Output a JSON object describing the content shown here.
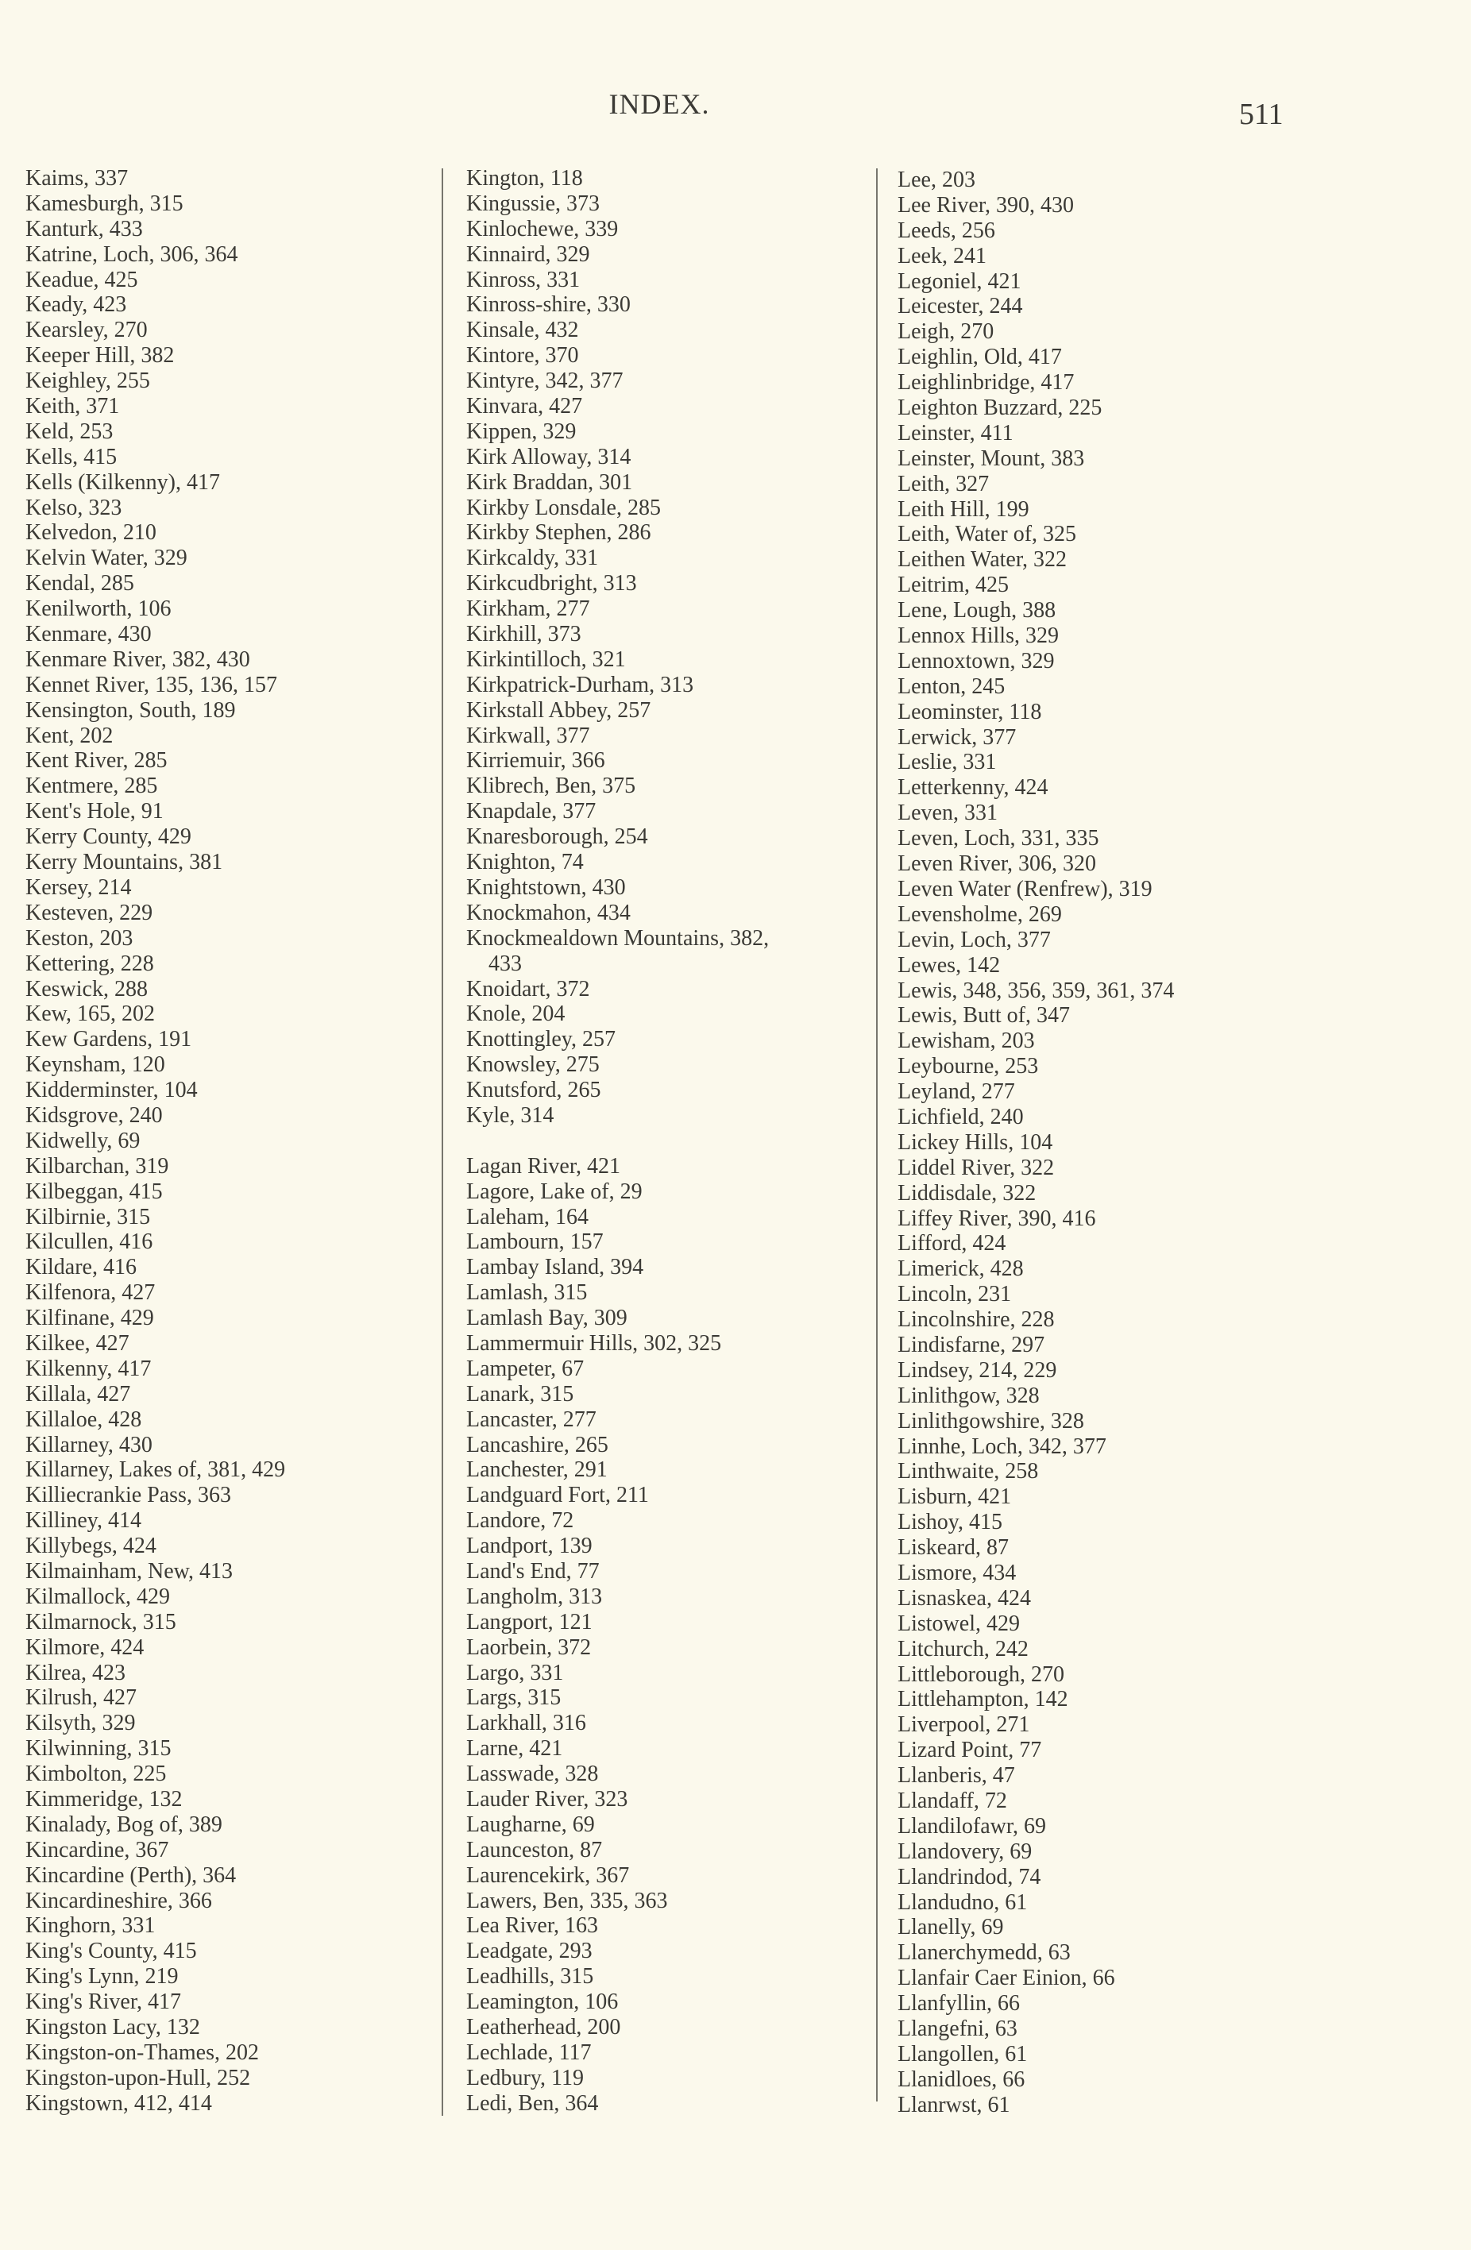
{
  "header": {
    "title": "INDEX.",
    "page_number": "511"
  },
  "columns": [
    [
      "Kaims, 337",
      "Kamesburgh, 315",
      "Kanturk, 433",
      "Katrine, Loch, 306, 364",
      "Keadue, 425",
      "Keady, 423",
      "Kearsley, 270",
      "Keeper Hill, 382",
      "Keighley, 255",
      "Keith, 371",
      "Keld, 253",
      "Kells, 415",
      "Kells (Kilkenny), 417",
      "Kelso, 323",
      "Kelvedon, 210",
      "Kelvin Water, 329",
      "Kendal, 285",
      "Kenilworth, 106",
      "Kenmare, 430",
      "Kenmare River, 382, 430",
      "Kennet River, 135, 136, 157",
      "Kensington, South, 189",
      "Kent, 202",
      "Kent River, 285",
      "Kentmere, 285",
      "Kent's Hole, 91",
      "Kerry County, 429",
      "Kerry Mountains, 381",
      "Kersey, 214",
      "Kesteven, 229",
      "Keston, 203",
      "Kettering, 228",
      "Keswick, 288",
      "Kew, 165, 202",
      "Kew Gardens, 191",
      "Keynsham, 120",
      "Kidderminster, 104",
      "Kidsgrove, 240",
      "Kidwelly, 69",
      "Kilbarchan, 319",
      "Kilbeggan, 415",
      "Kilbirnie, 315",
      "Kilcullen, 416",
      "Kildare, 416",
      "Kilfenora, 427",
      "Kilfinane, 429",
      "Kilkee, 427",
      "Kilkenny, 417",
      "Killala, 427",
      "Killaloe, 428",
      "Killarney, 430",
      "Killarney, Lakes of, 381, 429",
      "Killiecrankie Pass, 363",
      "Killiney, 414",
      "Killybegs, 424",
      "Kilmainham, New, 413",
      "Kilmallock, 429",
      "Kilmarnock, 315",
      "Kilmore, 424",
      "Kilrea, 423",
      "Kilrush, 427",
      "Kilsyth, 329",
      "Kilwinning, 315",
      "Kimbolton, 225",
      "Kimmeridge, 132",
      "Kinalady, Bog of, 389",
      "Kincardine, 367",
      "Kincardine (Perth), 364",
      "Kincardineshire, 366",
      "Kinghorn, 331",
      "King's County, 415",
      "King's Lynn, 219",
      "King's River, 417",
      "Kingston Lacy, 132",
      "Kingston-on-Thames, 202",
      "Kingston-upon-Hull, 252",
      "Kingstown, 412, 414"
    ],
    [
      "Kington, 118",
      "Kingussie, 373",
      "Kinlochewe, 339",
      "Kinnaird, 329",
      "Kinross, 331",
      "Kinross-shire, 330",
      "Kinsale, 432",
      "Kintore, 370",
      "Kintyre, 342, 377",
      "Kinvara, 427",
      "Kippen, 329",
      "Kirk Alloway, 314",
      "Kirk Braddan, 301",
      "Kirkby Lonsdale, 285",
      "Kirkby Stephen, 286",
      "Kirkcaldy, 331",
      "Kirkcudbright, 313",
      "Kirkham, 277",
      "Kirkhill, 373",
      "Kirkintilloch, 321",
      "Kirkpatrick-Durham, 313",
      "Kirkstall Abbey, 257",
      "Kirkwall, 377",
      "Kirriemuir, 366",
      "Klibrech, Ben, 375",
      "Knapdale, 377",
      "Knaresborough, 254",
      "Knighton, 74",
      "Knightstown, 430",
      "Knockmahon, 434",
      "Knockmealdown Mountains, 382,",
      "  433",
      "Knoidart, 372",
      "Knole, 204",
      "Knottingley, 257",
      "Knowsley, 275",
      "Knutsford, 265",
      "Kyle, 314",
      "",
      "Lagan River, 421",
      "Lagore, Lake of, 29",
      "Laleham, 164",
      "Lambourn, 157",
      "Lambay Island, 394",
      "Lamlash, 315",
      "Lamlash Bay, 309",
      "Lammermuir Hills, 302, 325",
      "Lampeter, 67",
      "Lanark, 315",
      "Lancaster, 277",
      "Lancashire, 265",
      "Lanchester, 291",
      "Landguard Fort, 211",
      "Landore, 72",
      "Landport, 139",
      "Land's End, 77",
      "Langholm, 313",
      "Langport, 121",
      "Laorbein, 372",
      "Largo, 331",
      "Largs, 315",
      "Larkhall, 316",
      "Larne, 421",
      "Lasswade, 328",
      "Lauder River, 323",
      "Laugharne, 69",
      "Launceston, 87",
      "Laurencekirk, 367",
      "Lawers, Ben, 335, 363",
      "Lea River, 163",
      "Leadgate, 293",
      "Leadhills, 315",
      "Leamington, 106",
      "Leatherhead, 200",
      "Lechlade, 117",
      "Ledbury, 119",
      "Ledi, Ben, 364"
    ],
    [
      "Lee, 203",
      "Lee River, 390, 430",
      "Leeds, 256",
      "Leek, 241",
      "Legoniel, 421",
      "Leicester, 244",
      "Leigh, 270",
      "Leighlin, Old, 417",
      "Leighlinbridge, 417",
      "Leighton Buzzard, 225",
      "Leinster, 411",
      "Leinster, Mount, 383",
      "Leith, 327",
      "Leith Hill, 199",
      "Leith, Water of, 325",
      "Leithen Water, 322",
      "Leitrim, 425",
      "Lene, Lough, 388",
      "Lennox Hills, 329",
      "Lennoxtown, 329",
      "Lenton, 245",
      "Leominster, 118",
      "Lerwick, 377",
      "Leslie, 331",
      "Letterkenny, 424",
      "Leven, 331",
      "Leven, Loch, 331, 335",
      "Leven River, 306, 320",
      "Leven Water (Renfrew), 319",
      "Levensholme, 269",
      "Levin, Loch, 377",
      "Lewes, 142",
      "Lewis, 348, 356, 359, 361, 374",
      "Lewis, Butt of, 347",
      "Lewisham, 203",
      "Leybourne, 253",
      "Leyland, 277",
      "Lichfield, 240",
      "Lickey Hills, 104",
      "Liddel River, 322",
      "Liddisdale, 322",
      "Liffey River, 390, 416",
      "Lifford, 424",
      "Limerick, 428",
      "Lincoln, 231",
      "Lincolnshire, 228",
      "Lindisfarne, 297",
      "Lindsey, 214, 229",
      "Linlithgow, 328",
      "Linlithgowshire, 328",
      "Linnhe, Loch, 342, 377",
      "Linthwaite, 258",
      "Lisburn, 421",
      "Lishoy, 415",
      "Liskeard, 87",
      "Lismore, 434",
      "Lisnaskea, 424",
      "Listowel, 429",
      "Litchurch, 242",
      "Littleborough, 270",
      "Littlehampton, 142",
      "Liverpool, 271",
      "Lizard Point, 77",
      "Llanberis, 47",
      "Llandaff, 72",
      "Llandilofawr, 69",
      "Llandovery, 69",
      "Llandrindod, 74",
      "Llandudno, 61",
      "Llanelly, 69",
      "Llanerchymedd, 63",
      "Llanfair Caer Einion, 66",
      "Llanfyllin, 66",
      "Llangefni, 63",
      "Llangollen, 61",
      "Llanidloes, 66",
      "Llanrwst, 61"
    ]
  ]
}
